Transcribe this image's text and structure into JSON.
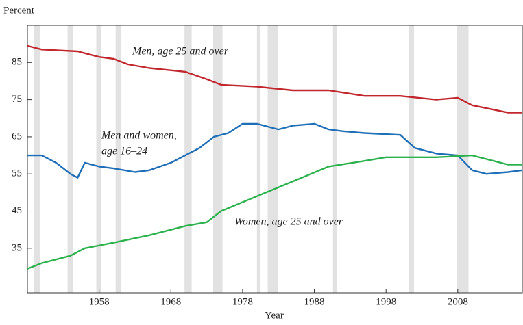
{
  "chart_data": {
    "type": "line",
    "ylabel": "Percent",
    "xlabel": "Year",
    "xlim": [
      1948,
      2017
    ],
    "ylim": [
      23,
      95
    ],
    "xticks": [
      1958,
      1968,
      1978,
      1988,
      1998,
      2008
    ],
    "yticks": [
      35,
      45,
      55,
      65,
      75,
      85
    ],
    "shading_color": "#e2e2e2",
    "recessions": [
      [
        1948.9,
        1949.8
      ],
      [
        1953.6,
        1954.4
      ],
      [
        1957.6,
        1958.3
      ],
      [
        1960.3,
        1961.1
      ],
      [
        1969.9,
        1970.9
      ],
      [
        1973.9,
        1975.2
      ],
      [
        1980.0,
        1980.5
      ],
      [
        1981.5,
        1982.9
      ],
      [
        1990.6,
        1991.2
      ],
      [
        2001.2,
        2001.9
      ],
      [
        2007.9,
        2009.5
      ]
    ],
    "series": [
      {
        "name": [
          "Men, age 25 and over"
        ],
        "color": "#c1272d",
        "x": [
          1948,
          1950,
          1955,
          1958,
          1960,
          1962,
          1965,
          1970,
          1973,
          1975,
          1980,
          1985,
          1990,
          1995,
          2000,
          2005,
          2008,
          2010,
          2015,
          2017
        ],
        "values": [
          89.5,
          88.5,
          88,
          86.5,
          86,
          84.5,
          83.5,
          82.5,
          80.5,
          79,
          78.5,
          77.5,
          77.5,
          76,
          76,
          75,
          75.5,
          73.5,
          71.5,
          71.5
        ]
      },
      {
        "name": [
          "Men and women,",
          "age 16–24"
        ],
        "color": "#1f6fb8",
        "x": [
          1948,
          1950,
          1952,
          1954,
          1955,
          1956,
          1958,
          1960,
          1963,
          1965,
          1968,
          1970,
          1972,
          1974,
          1976,
          1978,
          1980,
          1983,
          1985,
          1988,
          1990,
          1992,
          1995,
          2000,
          2002,
          2005,
          2008,
          2010,
          2012,
          2015,
          2017
        ],
        "values": [
          60,
          60,
          58,
          55,
          54,
          58,
          57,
          56.5,
          55.5,
          56,
          58,
          60,
          62,
          65,
          66,
          68.5,
          68.5,
          67,
          68,
          68.5,
          67,
          66.5,
          66,
          65.5,
          62,
          60.5,
          60,
          56,
          55,
          55.5,
          56
        ]
      },
      {
        "name": [
          "Women, age 25 and over"
        ],
        "color": "#2bb24c",
        "x": [
          1948,
          1950,
          1954,
          1956,
          1960,
          1965,
          1970,
          1973,
          1975,
          1980,
          1985,
          1990,
          1995,
          1998,
          2000,
          2005,
          2010,
          2013,
          2015,
          2017
        ],
        "values": [
          29.5,
          31,
          33,
          35,
          36.5,
          38.5,
          41,
          42,
          45,
          49,
          53,
          57,
          58.5,
          59.5,
          59.5,
          59.5,
          60,
          58.5,
          57.5,
          57.5
        ]
      }
    ]
  }
}
